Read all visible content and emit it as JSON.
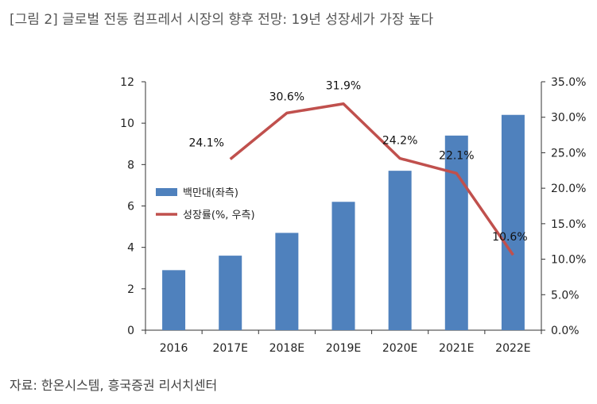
{
  "figure_title": "[그림 2] 글로벌 전동 컴프레서 시장의 향후 전망: 19년 성장세가 가장 높다",
  "source": "자료: 한온시스템, 흥국증권 리서치센터",
  "colors": {
    "bar": "#4f81bd",
    "line": "#c0504d",
    "axis": "#333333"
  },
  "chart_data": {
    "type": "bar",
    "categories": [
      "2016",
      "2017E",
      "2018E",
      "2019E",
      "2020E",
      "2021E",
      "2022E"
    ],
    "series": [
      {
        "name": "백만대(좌측)",
        "type": "bar",
        "axis": "left",
        "values": [
          2.9,
          3.6,
          4.7,
          6.2,
          7.7,
          9.4,
          10.4
        ]
      },
      {
        "name": "성장률(%, 우측)",
        "type": "line",
        "axis": "right",
        "x": [
          "2017E",
          "2018E",
          "2019E",
          "2020E",
          "2021E",
          "2022E"
        ],
        "values": [
          24.1,
          30.6,
          31.9,
          24.2,
          22.1,
          10.6
        ],
        "labels": [
          "24.1%",
          "30.6%",
          "31.9%",
          "24.2%",
          "22.1%",
          "10.6%"
        ]
      }
    ],
    "y_left": {
      "min": 0,
      "max": 12,
      "ticks": [
        "0",
        "2",
        "4",
        "6",
        "8",
        "10",
        "12"
      ]
    },
    "y_right": {
      "min": 0,
      "max": 35,
      "ticks": [
        "0.0%",
        "5.0%",
        "10.0%",
        "15.0%",
        "20.0%",
        "25.0%",
        "30.0%",
        "35.0%"
      ]
    },
    "legend_position": "left",
    "grid": false
  }
}
